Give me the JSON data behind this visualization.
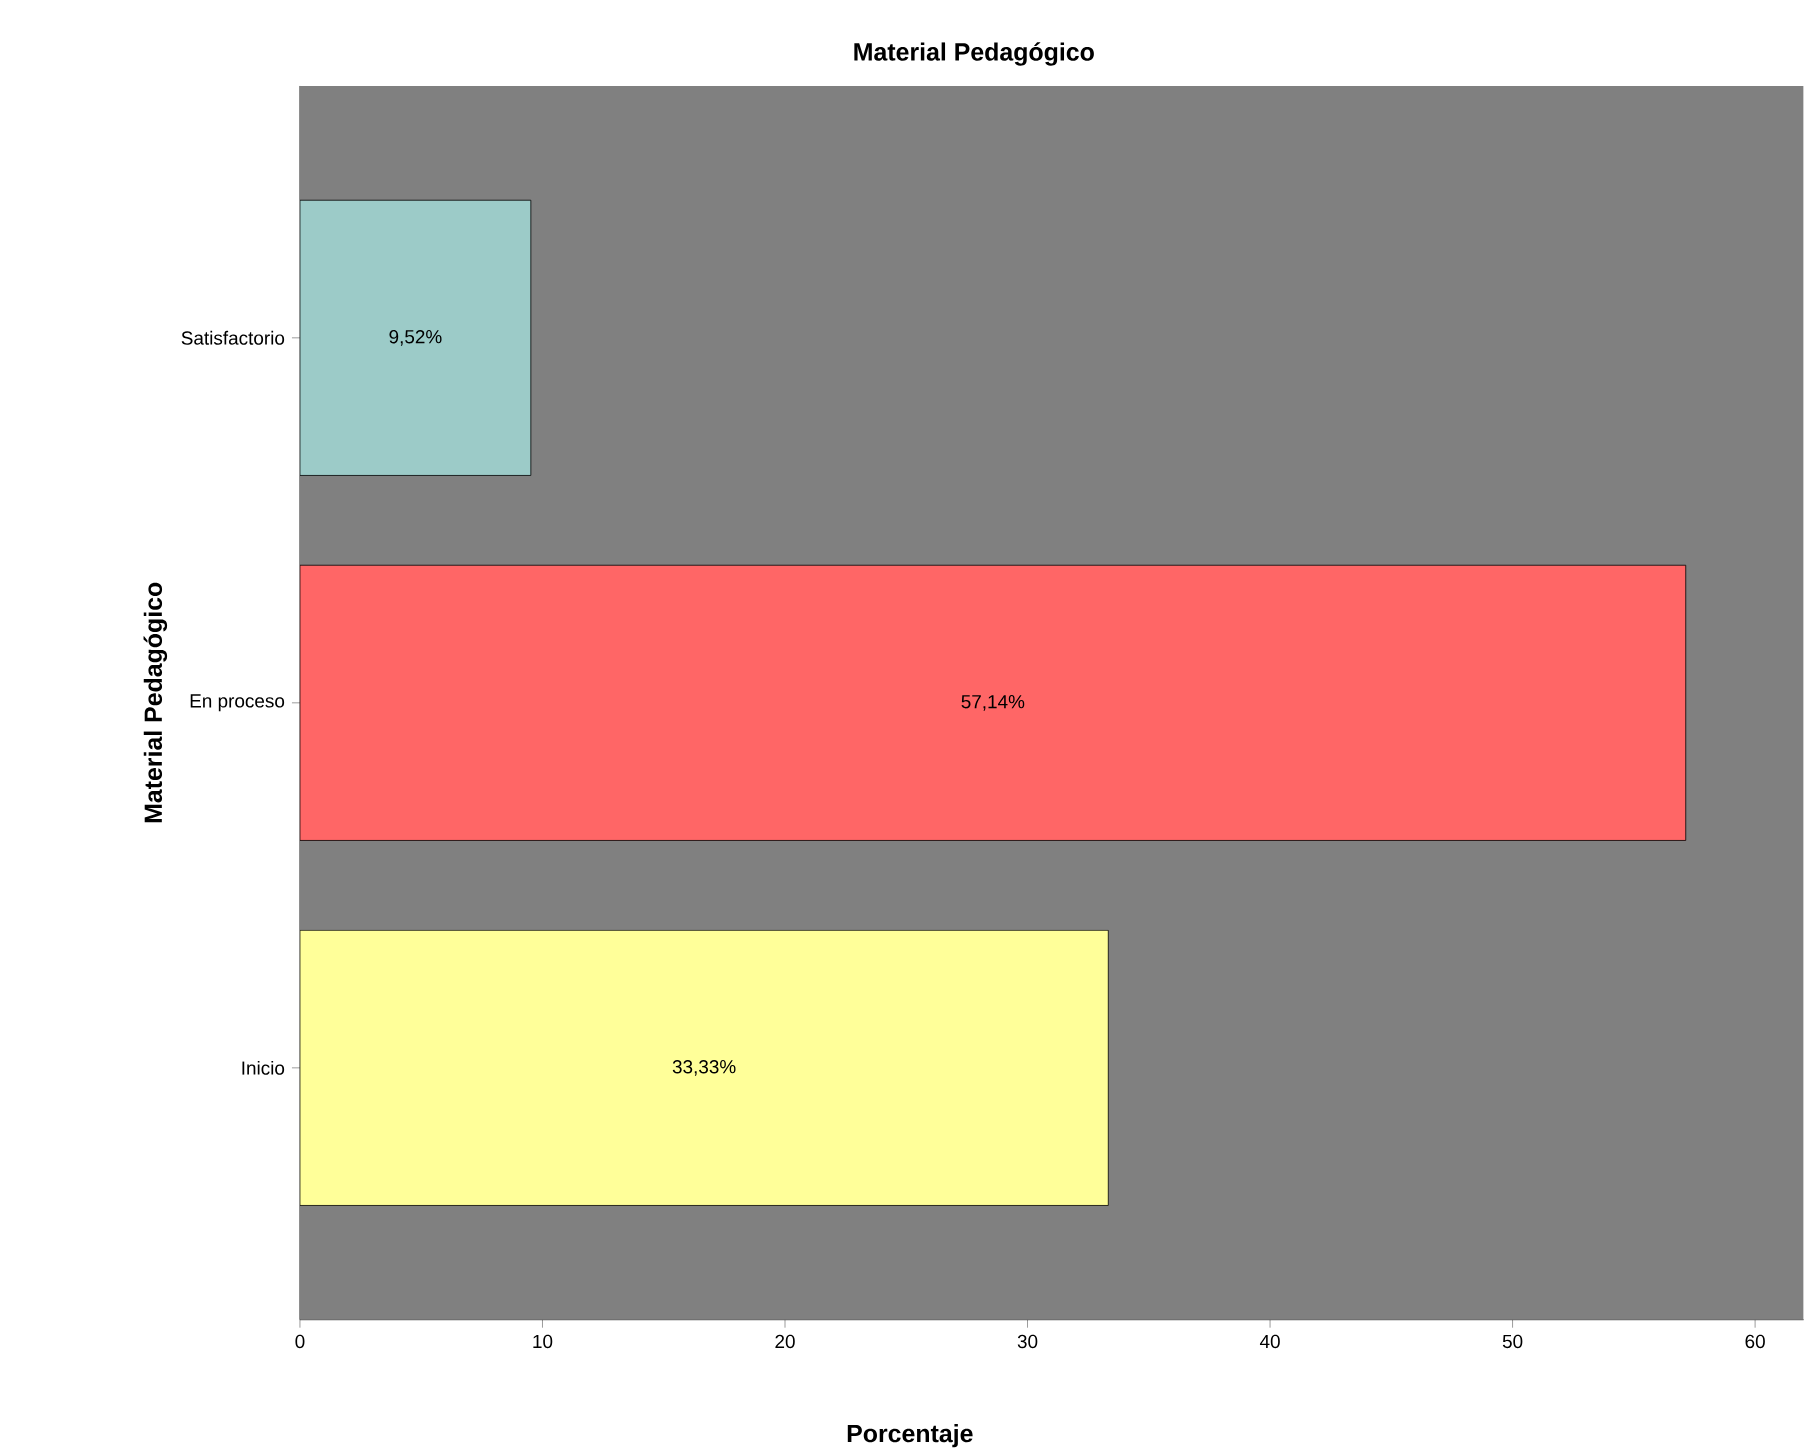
{
  "chart_data": {
    "type": "bar",
    "orientation": "horizontal",
    "title": "Material Pedagógico",
    "xlabel": "Porcentaje",
    "ylabel": "Material Pedagógico",
    "categories": [
      "Satisfactorio",
      "En proceso",
      "Inicio"
    ],
    "values": [
      9.52,
      57.14,
      33.33
    ],
    "colors": [
      "#9ccbc8",
      "#ff6666",
      "#ffff99"
    ],
    "value_labels": [
      "9,52%",
      "57,14%",
      "33,33%"
    ],
    "xlim": [
      0,
      62
    ],
    "xticks": [
      0,
      10,
      20,
      30,
      40,
      50,
      60
    ],
    "grid": false
  }
}
